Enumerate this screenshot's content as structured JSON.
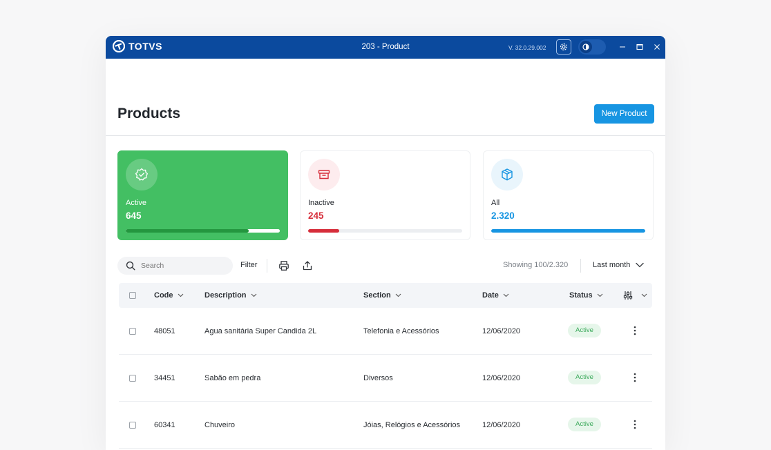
{
  "titlebar": {
    "brand": "TOTVS",
    "title": "203 - Product",
    "version": "V. 32.0.29.002"
  },
  "header": {
    "title": "Products",
    "new_button": "New Product"
  },
  "cards": [
    {
      "label": "Active",
      "value": "645",
      "progress": 0.8,
      "color": "#43bf63"
    },
    {
      "label": "Inactive",
      "value": "245",
      "progress": 0.2,
      "color": "#d62d3a"
    },
    {
      "label": "All",
      "value": "2.320",
      "progress": 1.0,
      "color": "#1795e2"
    }
  ],
  "toolbar": {
    "search_placeholder": "Search",
    "filter_label": "Filter",
    "showing": "Showing 100/2.320",
    "period": "Last month"
  },
  "table": {
    "columns": {
      "code": "Code",
      "description": "Description",
      "section": "Section",
      "date": "Date",
      "status": "Status"
    },
    "rows": [
      {
        "code": "48051",
        "description": "Agua sanitária Super Candida 2L",
        "section": "Telefonia e Acessórios",
        "date": "12/06/2020",
        "status": "Active"
      },
      {
        "code": "34451",
        "description": "Sabão em pedra",
        "section": "Diversos",
        "date": "12/06/2020",
        "status": "Active"
      },
      {
        "code": "60341",
        "description": "Chuveiro",
        "section": "Jóias, Relógios e Acessórios",
        "date": "12/06/2020",
        "status": "Active"
      }
    ]
  }
}
